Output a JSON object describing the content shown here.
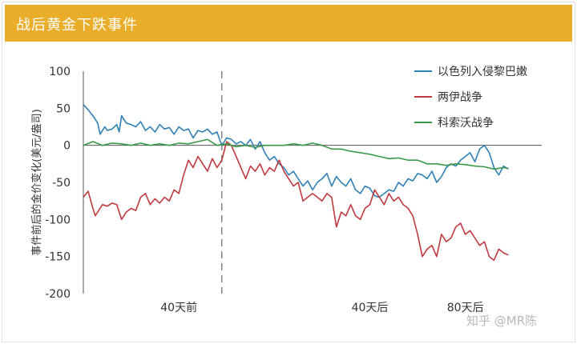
{
  "header": {
    "title": "战后黄金下跌事件"
  },
  "colors": {
    "header_bg": "#e9ad2a",
    "israel": "#2f80b5",
    "iran_iraq": "#c0393f",
    "kosovo": "#3a9a4a"
  },
  "chart_data": {
    "type": "line",
    "title": "战后黄金下跌事件",
    "ylabel": "事件前后的金价变化(美元/盎司)",
    "ylim": [
      -200,
      100
    ],
    "yticks": [
      100,
      50,
      0,
      -50,
      -100,
      -150,
      -200
    ],
    "x_ticks": [
      {
        "x": 40,
        "label": "40天前"
      },
      {
        "x": 120,
        "label": "40天后"
      },
      {
        "x": 160,
        "label": "80天后"
      }
    ],
    "xlim": [
      0,
      192
    ],
    "event_x": 58,
    "legend_position": "top-right",
    "series": [
      {
        "name": "以色列入侵黎巴嫩",
        "color": "#2f80b5",
        "x": [
          0,
          2,
          4,
          6,
          7,
          9,
          10,
          12,
          14,
          15,
          16,
          18,
          20,
          22,
          24,
          26,
          28,
          30,
          32,
          34,
          36,
          38,
          40,
          42,
          44,
          46,
          48,
          50,
          52,
          54,
          56,
          58,
          60,
          62,
          64,
          66,
          68,
          70,
          72,
          74,
          76,
          78,
          80,
          82,
          84,
          86,
          88,
          90,
          92,
          94,
          96,
          98,
          100,
          102,
          104,
          106,
          108,
          110,
          112,
          114,
          116,
          118,
          120,
          122,
          124,
          126,
          128,
          130,
          132,
          134,
          136,
          138,
          140,
          142,
          144,
          146,
          148,
          150,
          152,
          154,
          156,
          158,
          160,
          162,
          164,
          166,
          168,
          170,
          172,
          174,
          176,
          178
        ],
        "y": [
          55,
          48,
          40,
          30,
          15,
          25,
          20,
          22,
          28,
          18,
          40,
          30,
          28,
          25,
          32,
          20,
          25,
          18,
          28,
          22,
          24,
          15,
          25,
          20,
          22,
          10,
          20,
          18,
          22,
          15,
          18,
          0,
          10,
          8,
          2,
          5,
          0,
          8,
          -5,
          5,
          -10,
          -20,
          -15,
          -25,
          -30,
          -40,
          -35,
          -45,
          -55,
          -48,
          -60,
          -50,
          -45,
          -38,
          -55,
          -42,
          -50,
          -55,
          -45,
          -60,
          -65,
          -55,
          -58,
          -68,
          -70,
          -65,
          -60,
          -62,
          -50,
          -55,
          -45,
          -48,
          -38,
          -40,
          -45,
          -35,
          -50,
          -42,
          -30,
          -25,
          -28,
          -20,
          -15,
          -10,
          -22,
          -5,
          0,
          -10,
          -30,
          -40,
          -28,
          -32
        ]
      },
      {
        "name": "两伊战争",
        "color": "#c0393f",
        "x": [
          0,
          2,
          4,
          5,
          6,
          8,
          10,
          12,
          14,
          16,
          18,
          20,
          22,
          24,
          26,
          28,
          30,
          32,
          34,
          36,
          38,
          40,
          42,
          44,
          46,
          48,
          50,
          52,
          54,
          56,
          58,
          60,
          62,
          64,
          66,
          68,
          70,
          72,
          74,
          76,
          78,
          80,
          82,
          84,
          86,
          88,
          90,
          92,
          94,
          96,
          98,
          100,
          102,
          104,
          106,
          108,
          110,
          112,
          114,
          116,
          118,
          120,
          122,
          124,
          126,
          128,
          130,
          132,
          134,
          136,
          138,
          140,
          142,
          144,
          146,
          148,
          150,
          152,
          154,
          156,
          158,
          160,
          162,
          164,
          166,
          168,
          170,
          172,
          174,
          176,
          178
        ],
        "y": [
          -70,
          -62,
          -85,
          -95,
          -90,
          -80,
          -82,
          -78,
          -80,
          -100,
          -90,
          -85,
          -88,
          -70,
          -65,
          -80,
          -72,
          -78,
          -70,
          -75,
          -60,
          -65,
          -40,
          -20,
          -30,
          -15,
          -25,
          -35,
          -18,
          -30,
          -20,
          5,
          0,
          -15,
          -30,
          -45,
          -28,
          -35,
          -25,
          -40,
          -30,
          -35,
          -20,
          -35,
          -45,
          -55,
          -50,
          -75,
          -70,
          -65,
          -70,
          -75,
          -65,
          -70,
          -110,
          -90,
          -95,
          -80,
          -95,
          -100,
          -85,
          -80,
          -60,
          -70,
          -80,
          -65,
          -75,
          -70,
          -80,
          -85,
          -95,
          -120,
          -150,
          -140,
          -135,
          -150,
          -120,
          -130,
          -125,
          -110,
          -105,
          -120,
          -115,
          -125,
          -135,
          -130,
          -150,
          -155,
          -140,
          -145,
          -148
        ]
      },
      {
        "name": "科索沃战争",
        "color": "#3a9a4a",
        "x": [
          0,
          4,
          8,
          12,
          16,
          20,
          24,
          28,
          32,
          36,
          40,
          44,
          48,
          52,
          56,
          60,
          64,
          68,
          72,
          76,
          80,
          84,
          88,
          92,
          96,
          100,
          104,
          108,
          112,
          116,
          120,
          124,
          128,
          132,
          136,
          140,
          144,
          148,
          152,
          156,
          160,
          164,
          168,
          172,
          176,
          178
        ],
        "y": [
          0,
          5,
          0,
          3,
          2,
          0,
          3,
          0,
          2,
          0,
          3,
          2,
          5,
          8,
          0,
          2,
          -2,
          0,
          -3,
          0,
          0,
          0,
          2,
          0,
          3,
          0,
          -5,
          -5,
          -8,
          -10,
          -12,
          -15,
          -18,
          -17,
          -20,
          -20,
          -25,
          -25,
          -27,
          -25,
          -26,
          -28,
          -29,
          -32,
          -30,
          -31
        ]
      }
    ]
  },
  "watermark": {
    "text": "知乎 @MR陈"
  }
}
